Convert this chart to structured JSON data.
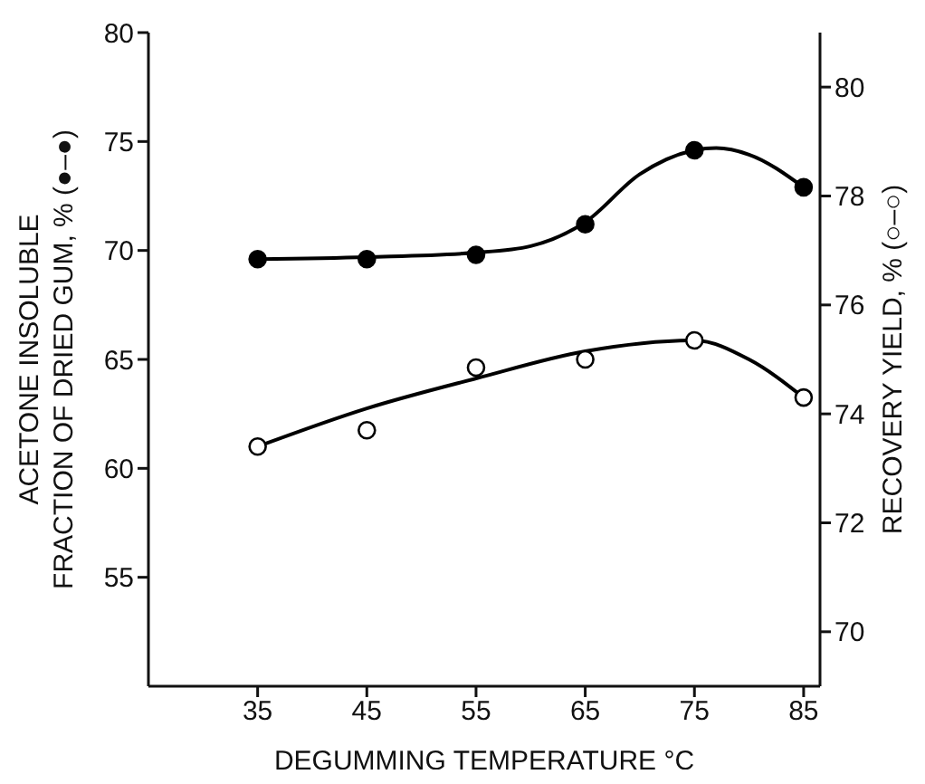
{
  "chart_data": {
    "type": "scatter",
    "xlabel": "DEGUMMING  TEMPERATURE °C",
    "ylabel": "ACETONE INSOLUBLE\nFRACTION OF DRIED GUM,  % (●–●)",
    "y2label": "RECOVERY  YIELD,  % (○–○)",
    "xlim": [
      25,
      86.5
    ],
    "xticks": [
      35,
      45,
      55,
      65,
      75,
      85
    ],
    "ylim": [
      50,
      80
    ],
    "yticks": [
      55,
      60,
      65,
      70,
      75,
      80
    ],
    "y2lim": [
      69,
      81
    ],
    "y2ticks": [
      70,
      72,
      74,
      76,
      78,
      80
    ],
    "grid": false,
    "marker": "circle",
    "series": [
      {
        "color": "#000000",
        "x": [
          35,
          45,
          55,
          65,
          75,
          85
        ],
        "values": [
          69.6,
          69.6,
          69.8,
          71.2,
          74.6,
          72.9
        ]
      },
      {
        "type": "line",
        "color": "#000000",
        "marker": "none",
        "x": [
          35,
          45,
          55,
          60,
          65,
          70,
          75,
          77,
          80,
          85
        ],
        "values": [
          69.6,
          69.7,
          69.9,
          70.2,
          71.3,
          73.5,
          74.6,
          74.7,
          74.4,
          72.9
        ]
      },
      {
        "axis": "y2",
        "color": "#000000",
        "marker": "circle",
        "x": [
          35,
          45,
          55,
          65,
          75,
          85
        ],
        "values": [
          73.4,
          73.7,
          74.85,
          75.0,
          75.35,
          74.3
        ]
      },
      {
        "type": "line",
        "axis": "y2",
        "color": "#000000",
        "marker": "none",
        "x": [
          35,
          45,
          55,
          65,
          75,
          80,
          85
        ],
        "values": [
          73.4,
          74.1,
          74.65,
          75.15,
          75.35,
          75.0,
          74.3
        ]
      }
    ]
  }
}
